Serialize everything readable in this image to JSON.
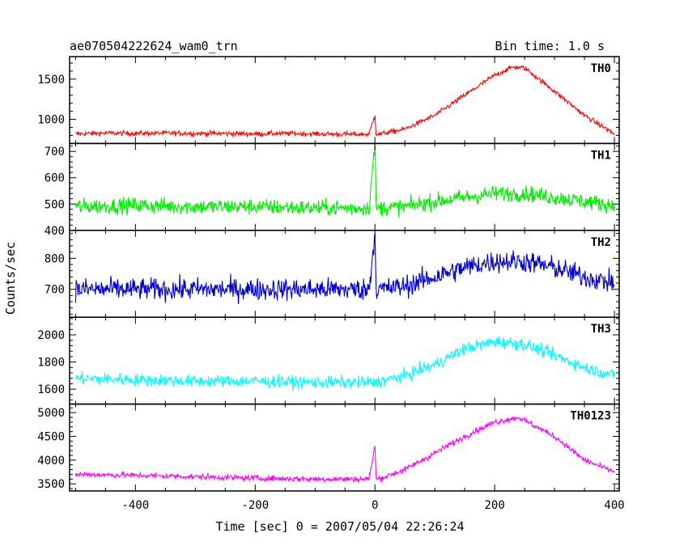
{
  "chart_data": {
    "type": "line",
    "title": "ae070504222624_wam0_trn",
    "subtitle": "Bin time: 1.0 s",
    "xlabel": "Time [sec] 0 = 2007/05/04 22:26:24",
    "ylabel": "Counts/sec",
    "xlim": [
      -510,
      408
    ],
    "xticks": [
      -400,
      -200,
      0,
      200,
      400
    ],
    "grid": false,
    "panels": [
      {
        "name": "TH0",
        "color": "#ff0000",
        "ylim": [
          700,
          1780
        ],
        "yticks": [
          1000,
          1500
        ],
        "series": {
          "x": [
            -500,
            -450,
            -400,
            -350,
            -300,
            -250,
            -200,
            -150,
            -100,
            -50,
            -10,
            0,
            2,
            10,
            50,
            100,
            150,
            200,
            230,
            250,
            300,
            350,
            400
          ],
          "y": [
            820,
            830,
            825,
            830,
            825,
            825,
            820,
            825,
            820,
            815,
            815,
            1050,
            820,
            820,
            880,
            1050,
            1300,
            1550,
            1650,
            1640,
            1350,
            1050,
            820
          ],
          "noise": 30
        }
      },
      {
        "name": "TH1",
        "color": "#00ee00",
        "ylim": [
          400,
          730
        ],
        "yticks": [
          400,
          500,
          600,
          700
        ],
        "series": {
          "x": [
            -500,
            -400,
            -300,
            -200,
            -100,
            -10,
            0,
            2,
            10,
            50,
            100,
            200,
            250,
            300,
            350,
            400
          ],
          "y": [
            490,
            495,
            490,
            490,
            485,
            485,
            730,
            485,
            485,
            490,
            510,
            540,
            540,
            525,
            510,
            495
          ],
          "noise": 30
        }
      },
      {
        "name": "TH2",
        "color": "#0000cc",
        "ylim": [
          610,
          890
        ],
        "yticks": [
          700,
          800
        ],
        "series": {
          "x": [
            -500,
            -400,
            -300,
            -200,
            -100,
            -10,
            0,
            2,
            10,
            50,
            100,
            150,
            200,
            250,
            300,
            350,
            400
          ],
          "y": [
            700,
            700,
            700,
            700,
            700,
            700,
            880,
            700,
            700,
            710,
            740,
            770,
            790,
            790,
            770,
            740,
            720
          ],
          "noise": 35
        }
      },
      {
        "name": "TH3",
        "color": "#00ffff",
        "ylim": [
          1490,
          2130
        ],
        "yticks": [
          1600,
          1800,
          2000
        ],
        "series": {
          "x": [
            -500,
            -400,
            -300,
            -200,
            -100,
            0,
            50,
            100,
            150,
            200,
            250,
            300,
            350,
            400
          ],
          "y": [
            1680,
            1670,
            1660,
            1660,
            1650,
            1650,
            1700,
            1780,
            1900,
            1950,
            1930,
            1850,
            1760,
            1700
          ],
          "noise": 45
        }
      },
      {
        "name": "TH0123",
        "color": "#ff00ff",
        "ylim": [
          3350,
          5180
        ],
        "yticks": [
          3500,
          4000,
          4500,
          5000
        ],
        "series": {
          "x": [
            -500,
            -400,
            -300,
            -200,
            -100,
            -10,
            0,
            2,
            10,
            50,
            100,
            150,
            200,
            240,
            300,
            350,
            400
          ],
          "y": [
            3700,
            3680,
            3650,
            3620,
            3600,
            3600,
            4300,
            3600,
            3620,
            3800,
            4150,
            4500,
            4800,
            4900,
            4500,
            4000,
            3750
          ],
          "noise": 60
        }
      }
    ]
  }
}
